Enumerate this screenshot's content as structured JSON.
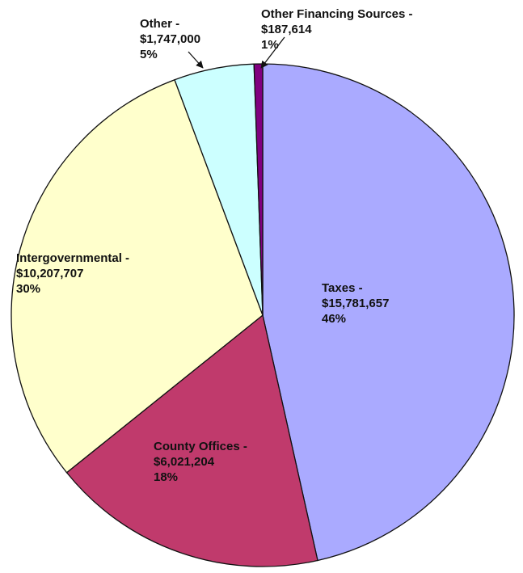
{
  "chart_data": {
    "type": "pie",
    "categories": [
      "Taxes -",
      "County Offices -",
      "Intergovernmental -",
      "Other -",
      "Other Financing Sources -"
    ],
    "values": [
      15781657,
      6021204,
      10207707,
      1747000,
      187614
    ],
    "value_labels": [
      "$15,781,657",
      "$6,021,204",
      "$10,207,707",
      "$1,747,000",
      "$187,614"
    ],
    "percent_labels": [
      "46%",
      "18%",
      "30%",
      "5%",
      "1%"
    ],
    "colors": [
      "#aaaaff",
      "#c03a6c",
      "#ffffcc",
      "#ccffff",
      "#800080"
    ]
  }
}
